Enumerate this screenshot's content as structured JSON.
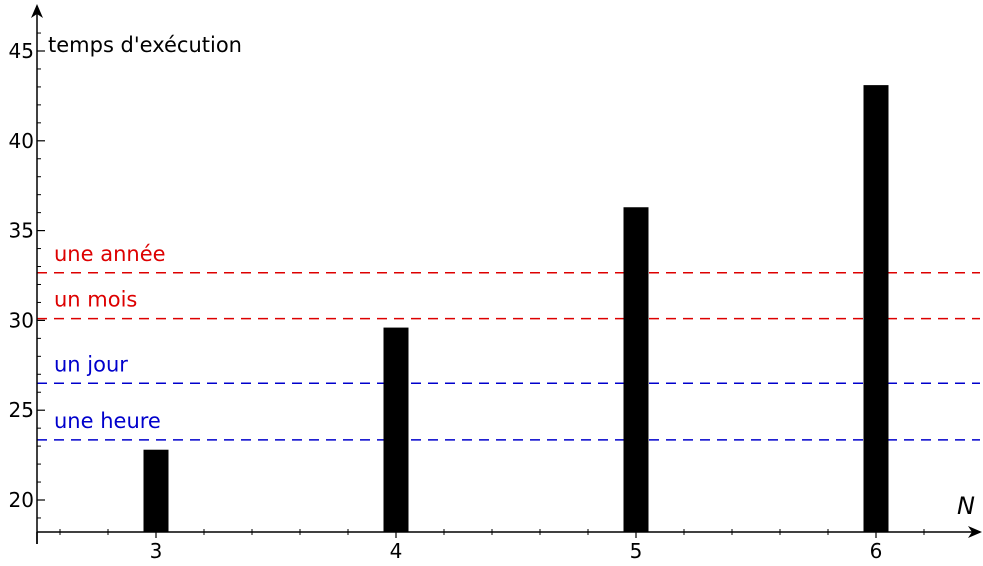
{
  "chart_data": {
    "type": "bar",
    "title": "",
    "xlabel": "N",
    "ylabel": "temps d'exécution",
    "categories": [
      "3",
      "4",
      "5",
      "6"
    ],
    "x": [
      3,
      4,
      5,
      6
    ],
    "values": [
      22.8,
      29.6,
      36.3,
      43.1
    ],
    "xlim": [
      2.5,
      6.5
    ],
    "ylim": [
      18.1,
      46.5
    ],
    "y_ticks": [
      "20",
      "25",
      "30",
      "35",
      "40",
      "45"
    ],
    "grid": false,
    "reference_lines": [
      {
        "label": "une heure",
        "y": 23.35,
        "color": "#0000cc",
        "style": "dashed"
      },
      {
        "label": "un jour",
        "y": 26.5,
        "color": "#0000cc",
        "style": "dashed"
      },
      {
        "label": "un mois",
        "y": 30.1,
        "color": "#dd0000",
        "style": "dashed"
      },
      {
        "label": "une année",
        "y": 32.65,
        "color": "#dd0000",
        "style": "dashed"
      }
    ],
    "bar_color": "#000000",
    "axis_color": "#000000"
  }
}
